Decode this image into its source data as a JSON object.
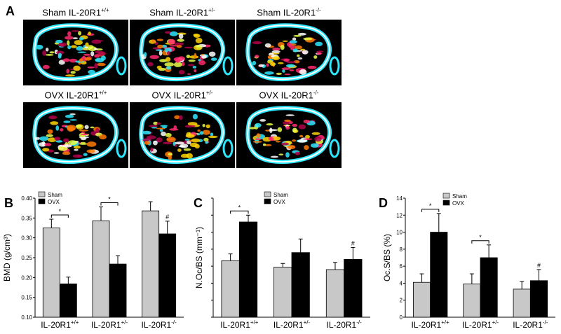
{
  "panel_a": {
    "letter": "A",
    "images": [
      {
        "prefix": "Sham IL-20R1",
        "sup": "+/+"
      },
      {
        "prefix": "Sham IL-20R1",
        "sup": "+/-"
      },
      {
        "prefix": "Sham IL-20R1",
        "sup": "-/-"
      },
      {
        "prefix": "OVX IL-20R1",
        "sup": "+/+"
      },
      {
        "prefix": "OVX IL-20R1",
        "sup": "+/-"
      },
      {
        "prefix": "OVX IL-20R1",
        "sup": "-/-"
      }
    ]
  },
  "chart_data": [
    {
      "type": "bar",
      "letter": "B",
      "ylabel": "BMD (g/cm³)",
      "ylim": [
        0.1,
        0.4
      ],
      "ytick_labels": [
        "0.10",
        "0.15",
        "0.20",
        "0.25",
        "0.30",
        "0.35",
        "0.40"
      ],
      "ytick_values": [
        0.1,
        0.15,
        0.2,
        0.25,
        0.3,
        0.35,
        0.4
      ],
      "categories": [
        "IL-20R1+/+",
        "IL-20R1+/-",
        "IL-20R1-/-"
      ],
      "category_base": "IL-20R1",
      "category_sups": [
        "+/+",
        "+/-",
        "-/-"
      ],
      "series": [
        {
          "name": "Sham",
          "color": "#c8c8c8",
          "values": [
            0.325,
            0.343,
            0.368
          ],
          "errors": [
            0.022,
            0.035,
            0.023
          ]
        },
        {
          "name": "OVX",
          "color": "#000000",
          "values": [
            0.184,
            0.234,
            0.31
          ],
          "errors": [
            0.017,
            0.021,
            0.032
          ]
        }
      ],
      "significance": [
        {
          "type": "bracket",
          "category": 0,
          "label": "*"
        },
        {
          "type": "bracket",
          "category": 1,
          "label": "*"
        },
        {
          "type": "mark",
          "category": 2,
          "label": "#"
        }
      ],
      "legend": "top-left"
    },
    {
      "type": "bar",
      "letter": "C",
      "ylabel": "N.Oc/BS (mm⁻¹)",
      "ylim": [
        0,
        3.5
      ],
      "ytick_labels": [],
      "ytick_values": [
        0,
        0.5,
        1,
        1.5,
        2,
        2.5,
        3,
        3.5
      ],
      "categories": [
        "IL-20R1+/+",
        "IL-20R1+/-",
        "IL-20R1-/-"
      ],
      "category_base": "IL-20R1",
      "category_sups": [
        "+/+",
        "+/-",
        "-/-"
      ],
      "series": [
        {
          "name": "Sham",
          "color": "#c8c8c8",
          "values": [
            1.66,
            1.47,
            1.4
          ],
          "errors": [
            0.2,
            0.11,
            0.21
          ]
        },
        {
          "name": "OVX",
          "color": "#000000",
          "values": [
            2.8,
            1.9,
            1.7
          ],
          "errors": [
            0.2,
            0.4,
            0.35
          ]
        }
      ],
      "significance": [
        {
          "type": "bracket",
          "category": 0,
          "label": "*"
        },
        {
          "type": "mark",
          "category": 2,
          "label": "#"
        }
      ],
      "legend": "top-center"
    },
    {
      "type": "bar",
      "letter": "D",
      "ylabel": "Oc.S/BS (%)",
      "ylim": [
        0,
        14
      ],
      "ytick_labels": [
        "0",
        "2",
        "4",
        "6",
        "8",
        "10",
        "12",
        "14"
      ],
      "ytick_values": [
        0,
        2,
        4,
        6,
        8,
        10,
        12,
        14
      ],
      "categories": [
        "IL-20R1+/+",
        "IL-20R1+/-",
        "IL-20R1-/-"
      ],
      "category_base": "IL-20R1",
      "category_sups": [
        "+/+",
        "+/-",
        "-/-"
      ],
      "series": [
        {
          "name": "Sham",
          "color": "#c8c8c8",
          "values": [
            4.1,
            3.9,
            3.3
          ],
          "errors": [
            1.0,
            1.2,
            0.9
          ]
        },
        {
          "name": "OVX",
          "color": "#000000",
          "values": [
            10.0,
            7.0,
            4.3
          ],
          "errors": [
            2.2,
            1.5,
            1.3
          ]
        }
      ],
      "significance": [
        {
          "type": "bracket",
          "category": 0,
          "label": "*"
        },
        {
          "type": "bracket",
          "category": 1,
          "label": "*"
        },
        {
          "type": "mark",
          "category": 2,
          "label": "#"
        }
      ],
      "legend": "top-left"
    }
  ]
}
